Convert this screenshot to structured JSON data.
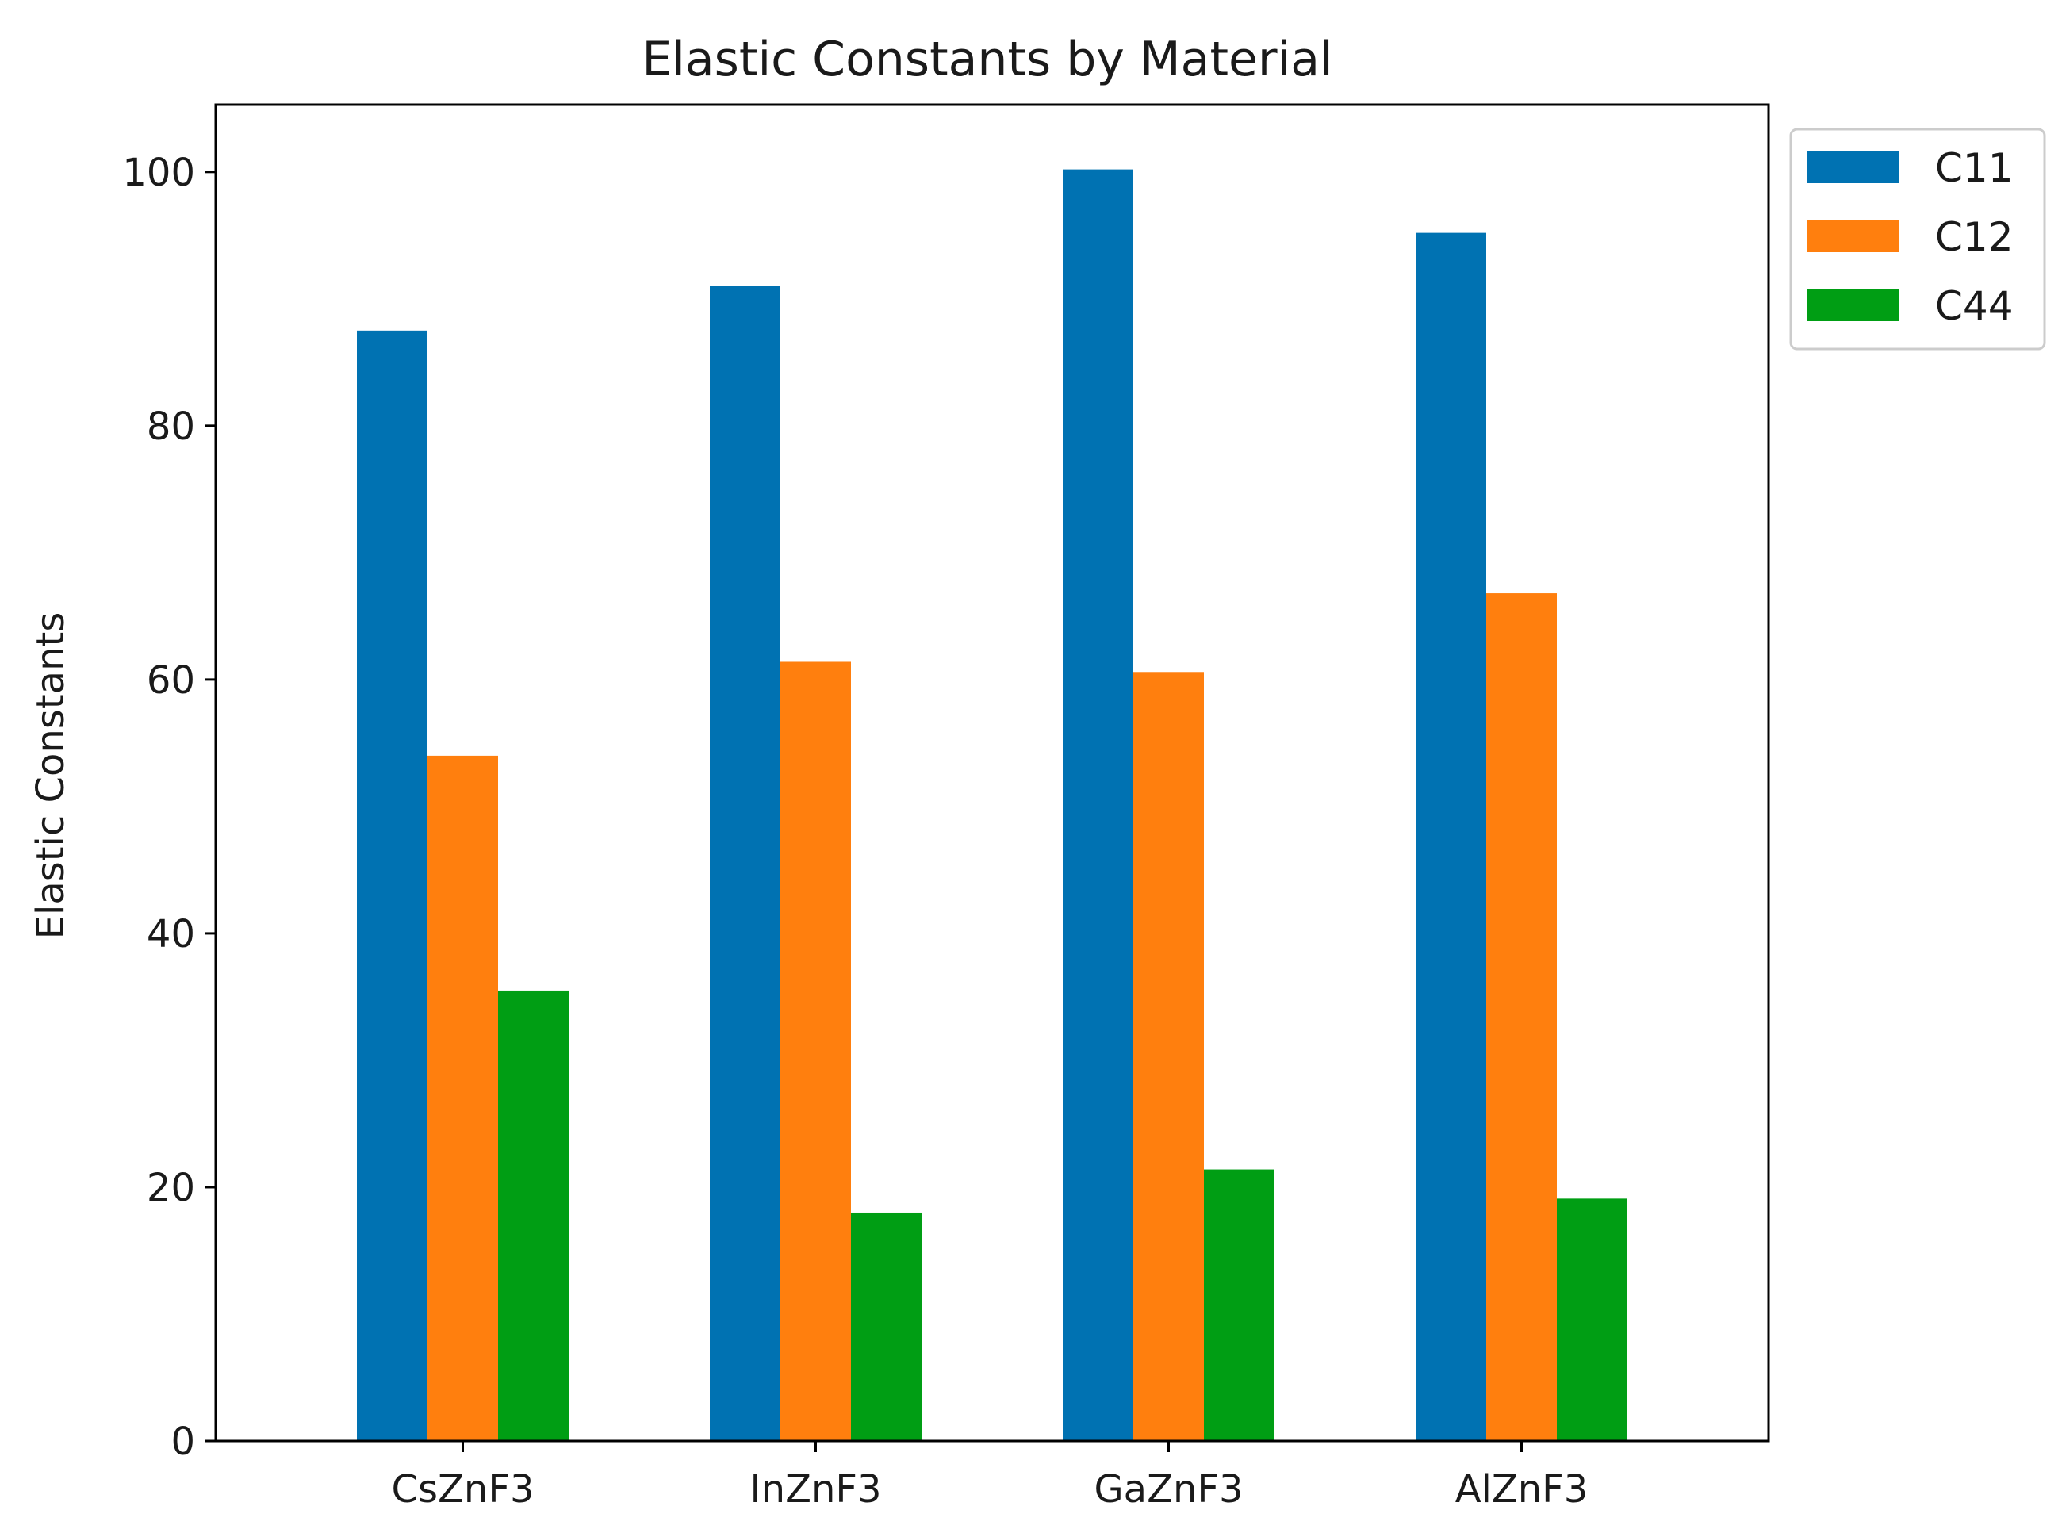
{
  "chart_data": {
    "type": "bar",
    "title": "Elastic Constants by Material",
    "xlabel": "",
    "ylabel": "Elastic Constants",
    "categories": [
      "CsZnF3",
      "InZnF3",
      "GaZnF3",
      "AlZnF3"
    ],
    "series": [
      {
        "name": "C11",
        "color": "#0072b2",
        "values": [
          87.5,
          91.0,
          100.2,
          95.2
        ]
      },
      {
        "name": "C12",
        "color": "#ff7f0e",
        "values": [
          54.0,
          61.4,
          60.6,
          66.8
        ]
      },
      {
        "name": "C44",
        "color": "#009e14",
        "values": [
          35.5,
          18.0,
          21.4,
          19.1
        ]
      }
    ],
    "ylim": [
      0,
      105.3
    ],
    "yticks": [
      0,
      20,
      40,
      60,
      80,
      100
    ],
    "grid": false,
    "legend": {
      "position": "outside-top-right"
    }
  }
}
